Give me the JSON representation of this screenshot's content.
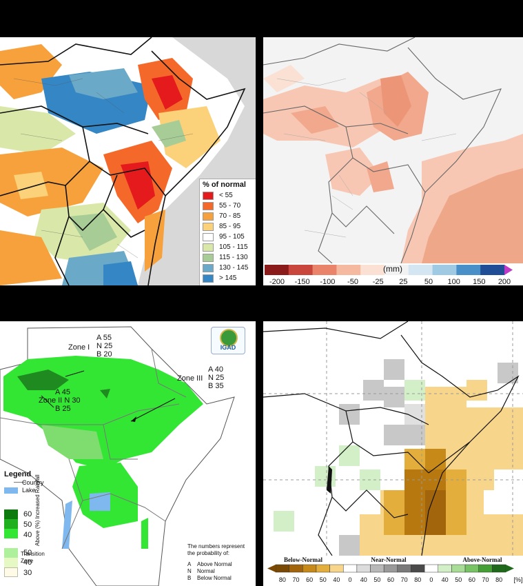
{
  "panel_tl": {
    "legend_title": "% of normal",
    "legend": [
      {
        "label": "< 55",
        "color": "#e41a1c"
      },
      {
        "label": "55 - 70",
        "color": "#f4692a"
      },
      {
        "label": "70 - 85",
        "color": "#f7a13c"
      },
      {
        "label": "85 - 95",
        "color": "#fbd27a"
      },
      {
        "label": "95 - 105",
        "color": "#ffffff"
      },
      {
        "label": "105 - 115",
        "color": "#d9e8a8"
      },
      {
        "label": "115 - 130",
        "color": "#a8cc96"
      },
      {
        "label": "130 - 145",
        "color": "#6aa9c8"
      },
      {
        "label": "> 145",
        "color": "#3586c4"
      }
    ]
  },
  "panel_tr": {
    "unit": "(mm)",
    "ticks": [
      "-200",
      "-150",
      "-100",
      "-50",
      "-25",
      "25",
      "50",
      "100",
      "150",
      "200"
    ],
    "colors": [
      "#8b1a1a",
      "#c8463c",
      "#e9836a",
      "#f5b9a0",
      "#fbe1d4",
      "#f2f2f2",
      "#d4e6f2",
      "#9fcae3",
      "#4a90c8",
      "#1f4e96",
      "#c03ac8"
    ]
  },
  "panel_bl": {
    "logo_text": "IGAD",
    "zones": [
      {
        "name": "Zone I",
        "a": "A 55",
        "n": "N 25",
        "b": "B 20"
      },
      {
        "name": "Zone II",
        "a": "A 45",
        "n": "N 30",
        "b": "B 25"
      },
      {
        "name": "Zone III",
        "a": "A 40",
        "n": "N 25",
        "b": "B 35"
      }
    ],
    "legend_title": "Legend",
    "legend_country": "Country",
    "legend_lake": "Lake",
    "above_label": "Above (%) Increased Rainfall",
    "above_values": [
      "60",
      "50",
      "40"
    ],
    "transition_values": [
      "50",
      "40",
      "30"
    ],
    "transition_label": "Transition Zone",
    "note_lines": [
      "The numbers represent",
      "the probability of:"
    ],
    "key": [
      {
        "letter": "A",
        "text": "Above Normal"
      },
      {
        "letter": "N",
        "text": "Normal"
      },
      {
        "letter": "B",
        "text": "Below Normal"
      }
    ]
  },
  "panel_br": {
    "category_labels": [
      "Below-Normal",
      "Near-Normal",
      "Above-Normal"
    ],
    "ticks": [
      "80",
      "70",
      "60",
      "50",
      "40",
      "0",
      "40",
      "50",
      "60",
      "70",
      "80",
      "0",
      "40",
      "50",
      "60",
      "70",
      "80"
    ],
    "unit": "[%]",
    "colors": [
      "#7a4a05",
      "#a2650b",
      "#c78918",
      "#e4ae3c",
      "#f7d58a",
      "#ffffff",
      "#dcdcdc",
      "#b8b8b8",
      "#9a9a9a",
      "#7a7a7a",
      "#4a4a4a",
      "#ffffff",
      "#d2efc8",
      "#a8dd98",
      "#78c464",
      "#44a035",
      "#1e6a1a"
    ]
  }
}
